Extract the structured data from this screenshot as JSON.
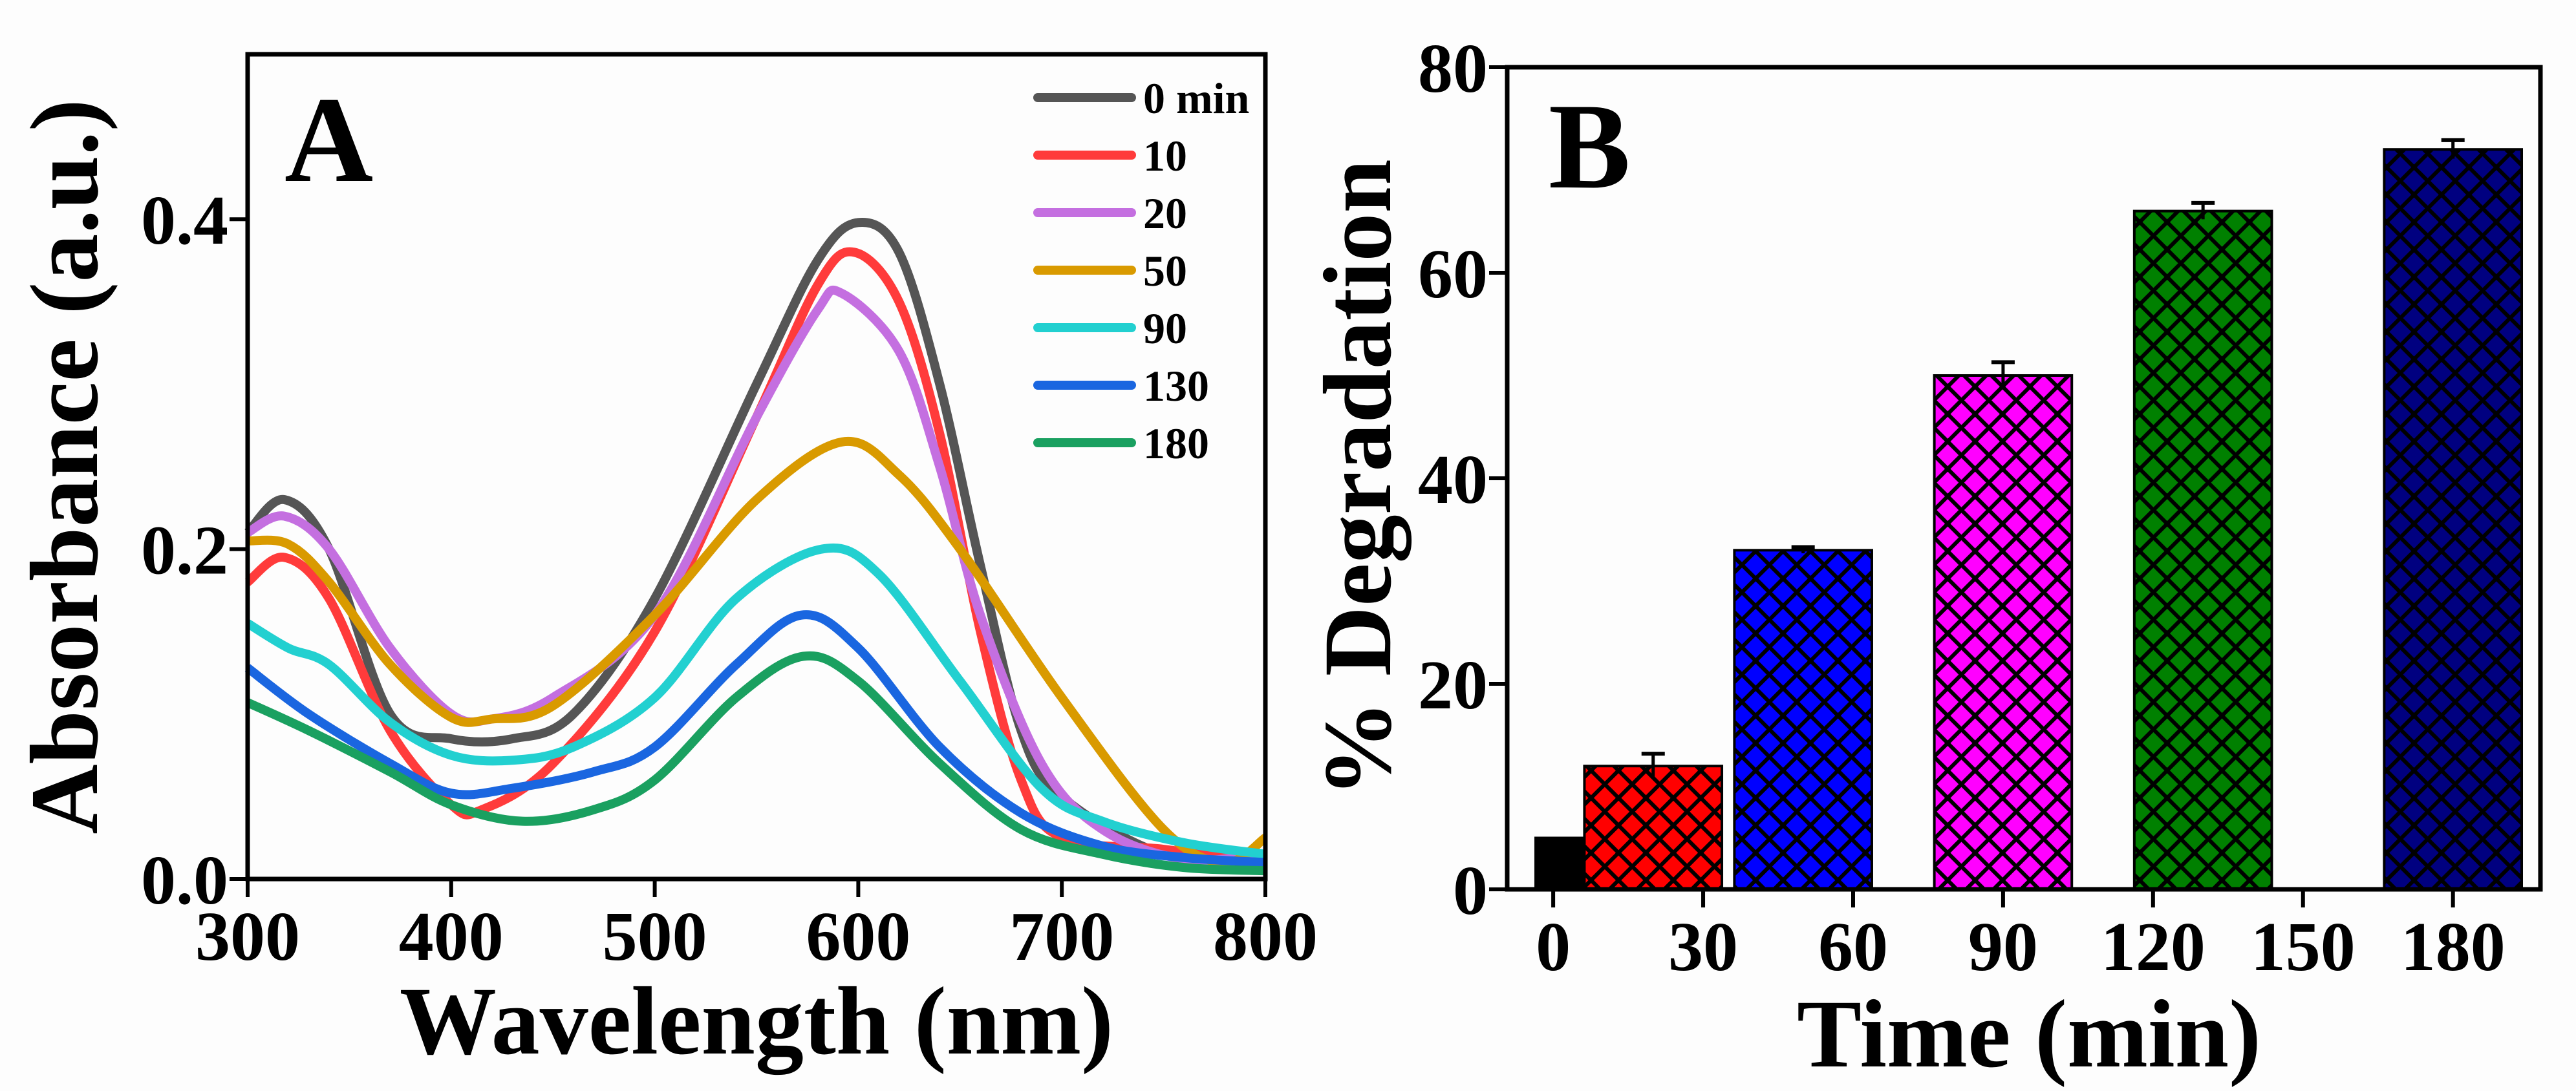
{
  "chart_data": [
    {
      "type": "line",
      "panel_label": "A",
      "xlabel": "Wavelength (nm)",
      "ylabel": "Absorbance (a.u.)",
      "xlim": [
        300,
        800
      ],
      "ylim": [
        0,
        0.5
      ],
      "xticks": [
        300,
        400,
        500,
        600,
        700,
        800
      ],
      "xtick_labels": [
        "300",
        "400",
        "500",
        "600",
        "700",
        "800"
      ],
      "yticks": [
        0.0,
        0.2,
        0.4
      ],
      "ytick_labels": [
        "0.0",
        "0.2",
        "0.4"
      ],
      "grid": false,
      "legend_position": "top-right",
      "series": [
        {
          "name": "0 min",
          "color": "#555555",
          "x": [
            300,
            318,
            340,
            370,
            400,
            430,
            460,
            500,
            550,
            580,
            600,
            620,
            640,
            660,
            680,
            700,
            750,
            800
          ],
          "y": [
            0.21,
            0.23,
            0.2,
            0.1,
            0.085,
            0.085,
            0.1,
            0.17,
            0.3,
            0.375,
            0.398,
            0.38,
            0.3,
            0.19,
            0.09,
            0.05,
            0.015,
            0.01
          ]
        },
        {
          "name": "10",
          "color": "#ff3b3b",
          "x": [
            300,
            318,
            340,
            370,
            400,
            415,
            450,
            500,
            550,
            580,
            598,
            620,
            640,
            660,
            680,
            700,
            750,
            800
          ],
          "y": [
            0.18,
            0.195,
            0.17,
            0.09,
            0.045,
            0.042,
            0.07,
            0.15,
            0.28,
            0.36,
            0.38,
            0.35,
            0.27,
            0.15,
            0.06,
            0.025,
            0.018,
            0.01
          ]
        },
        {
          "name": "20",
          "color": "#c46fe0",
          "x": [
            300,
            318,
            340,
            370,
            400,
            420,
            450,
            500,
            550,
            580,
            592,
            620,
            640,
            660,
            690,
            720,
            760,
            800
          ],
          "y": [
            0.21,
            0.22,
            0.2,
            0.14,
            0.1,
            0.097,
            0.11,
            0.16,
            0.28,
            0.345,
            0.355,
            0.32,
            0.25,
            0.16,
            0.07,
            0.03,
            0.012,
            0.015
          ]
        },
        {
          "name": "50",
          "color": "#d99a00",
          "x": [
            300,
            320,
            340,
            370,
            400,
            420,
            450,
            500,
            550,
            592,
            620,
            650,
            700,
            750,
            780,
            800
          ],
          "y": [
            0.205,
            0.203,
            0.18,
            0.13,
            0.098,
            0.097,
            0.105,
            0.16,
            0.23,
            0.265,
            0.245,
            0.2,
            0.11,
            0.03,
            0.01,
            0.025
          ]
        },
        {
          "name": "90",
          "color": "#22d0d0",
          "x": [
            300,
            320,
            340,
            370,
            400,
            430,
            460,
            500,
            540,
            582,
            610,
            650,
            690,
            720,
            760,
            800
          ],
          "y": [
            0.155,
            0.14,
            0.13,
            0.095,
            0.075,
            0.072,
            0.08,
            0.11,
            0.17,
            0.2,
            0.185,
            0.12,
            0.055,
            0.035,
            0.022,
            0.015
          ]
        },
        {
          "name": "130",
          "color": "#1a66e0",
          "x": [
            300,
            330,
            370,
            400,
            430,
            470,
            500,
            540,
            572,
            600,
            640,
            680,
            720,
            760,
            800
          ],
          "y": [
            0.128,
            0.1,
            0.07,
            0.052,
            0.055,
            0.065,
            0.08,
            0.13,
            0.16,
            0.14,
            0.08,
            0.04,
            0.02,
            0.013,
            0.01
          ]
        },
        {
          "name": "180",
          "color": "#1aa060",
          "x": [
            300,
            330,
            370,
            400,
            435,
            470,
            500,
            540,
            573,
            600,
            640,
            680,
            720,
            760,
            800
          ],
          "y": [
            0.107,
            0.09,
            0.065,
            0.045,
            0.035,
            0.042,
            0.06,
            0.11,
            0.135,
            0.12,
            0.07,
            0.03,
            0.015,
            0.007,
            0.005
          ]
        }
      ]
    },
    {
      "type": "bar",
      "panel_label": "B",
      "xlabel": "Time (min)",
      "ylabel": "% Degradation",
      "xlim": [
        -9.2,
        197.5
      ],
      "ylim": [
        0,
        80
      ],
      "xticks": [
        0,
        30,
        60,
        90,
        120,
        150,
        180
      ],
      "xtick_labels": [
        "0",
        "30",
        "60",
        "90",
        "120",
        "150",
        "180"
      ],
      "yticks": [
        0,
        20,
        40,
        60,
        80
      ],
      "ytick_labels": [
        "0",
        "20",
        "40",
        "60",
        "80"
      ],
      "grid": false,
      "bars": [
        {
          "x": 1.5,
          "width": 10,
          "value": 5,
          "error": 0,
          "color": "#000000"
        },
        {
          "x": 20,
          "width": 27.5,
          "value": 12,
          "error": 1.2,
          "color": "#ff0000"
        },
        {
          "x": 50,
          "width": 27.5,
          "value": 33,
          "error": 0.3,
          "color": "#0000ff"
        },
        {
          "x": 90,
          "width": 27.5,
          "value": 50,
          "error": 1.3,
          "color": "#ff00ff"
        },
        {
          "x": 130,
          "width": 27.5,
          "value": 66,
          "error": 0.8,
          "color": "#008000"
        },
        {
          "x": 180,
          "width": 27.5,
          "value": 72,
          "error": 0.9,
          "color": "#000080"
        }
      ]
    }
  ]
}
